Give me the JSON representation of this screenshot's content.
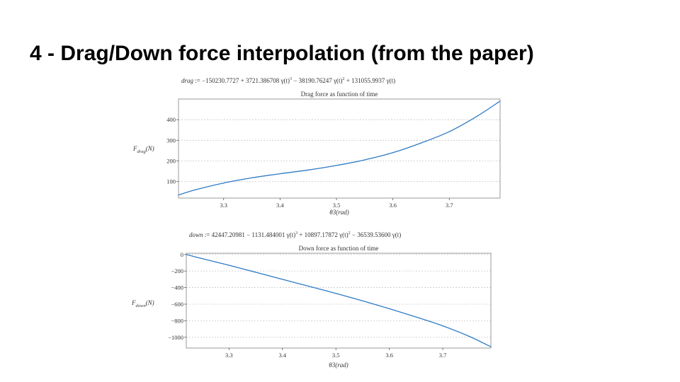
{
  "slide": {
    "title": "4 - Drag/Down force interpolation (from the paper)"
  },
  "drag_equation": {
    "lhs": "drag",
    "assign": " := ",
    "terms": [
      {
        "text": "−150230.7727 + 3721.386708 ",
        "fn": "γ(t)",
        "exp": "3"
      },
      {
        "text": " − 38190.76247 ",
        "fn": "γ(t)",
        "exp": "2"
      },
      {
        "text": " + 131055.9937 ",
        "fn": "γ(t)",
        "exp": ""
      }
    ]
  },
  "down_equation": {
    "lhs": "down",
    "assign": " := ",
    "terms": [
      {
        "text": "42447.20981 − 1131.484001 ",
        "fn": "γ(t)",
        "exp": "3"
      },
      {
        "text": " + 10897.17872 ",
        "fn": "γ(t)",
        "exp": "2"
      },
      {
        "text": " − 36539.53600 ",
        "fn": "γ(t)",
        "exp": ""
      }
    ]
  },
  "chart_data": [
    {
      "type": "line",
      "title": "Drag force as function of time",
      "xlabel": "θ3(rad)",
      "ylabel_main": "F",
      "ylabel_sub": "drag",
      "ylabel_tail": "(N)",
      "xlim": [
        3.22,
        3.79
      ],
      "ylim": [
        20,
        500
      ],
      "xticks": [
        3.3,
        3.4,
        3.5,
        3.6,
        3.7
      ],
      "yticks": [
        100,
        200,
        300,
        400
      ],
      "xtick_labels": [
        "3.3",
        "3.4",
        "3.5",
        "3.6",
        "3.7"
      ],
      "ytick_labels": [
        "100",
        "200",
        "300",
        "400"
      ],
      "grid": true,
      "line_color": "#2e7bc4",
      "series": [
        {
          "x": [
            3.22,
            3.25,
            3.3,
            3.35,
            3.4,
            3.45,
            3.5,
            3.55,
            3.6,
            3.65,
            3.7,
            3.75,
            3.79
          ],
          "values": [
            35,
            60,
            93,
            118,
            138,
            156,
            178,
            205,
            240,
            287,
            342,
            418,
            490
          ]
        }
      ]
    },
    {
      "type": "line",
      "title": "Down force as function of time",
      "xlabel": "θ3(rad)",
      "ylabel_main": "F",
      "ylabel_sub": "down",
      "ylabel_tail": "(N)",
      "xlim": [
        3.22,
        3.79
      ],
      "ylim": [
        -1130,
        15
      ],
      "xticks": [
        3.3,
        3.4,
        3.5,
        3.6,
        3.7
      ],
      "yticks": [
        0,
        -200,
        -400,
        -600,
        -800,
        -1000
      ],
      "xtick_labels": [
        "3.3",
        "3.4",
        "3.5",
        "3.6",
        "3.7"
      ],
      "ytick_labels": [
        "0",
        "−200",
        "−400",
        "−600",
        "−800",
        "−1000"
      ],
      "grid": true,
      "line_color": "#2e7bc4",
      "series": [
        {
          "x": [
            3.22,
            3.25,
            3.3,
            3.35,
            3.4,
            3.45,
            3.5,
            3.55,
            3.6,
            3.65,
            3.7,
            3.75,
            3.79
          ],
          "values": [
            0,
            -50,
            -130,
            -215,
            -300,
            -385,
            -470,
            -560,
            -655,
            -755,
            -862,
            -990,
            -1115
          ]
        }
      ]
    }
  ]
}
